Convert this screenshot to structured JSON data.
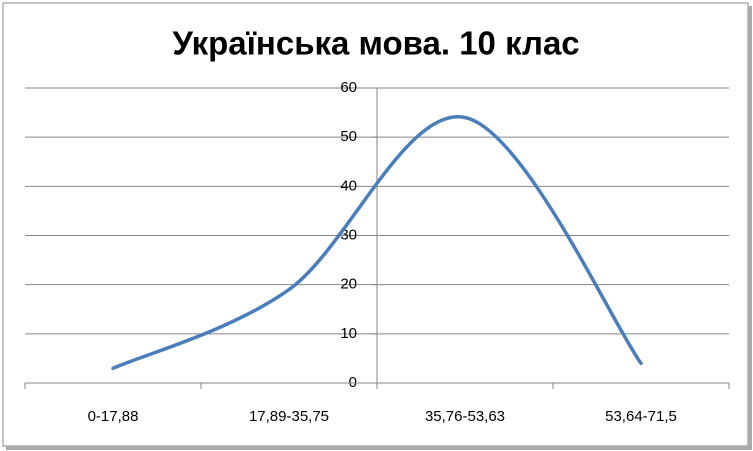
{
  "chart_data": {
    "type": "line",
    "title": "Українська мова. 10 клас",
    "categories": [
      "0-17,88",
      "17,89-35,75",
      "35,76-53,63",
      "53,64-71,5"
    ],
    "series": [
      {
        "color": "#4a7ebb",
        "values": [
          3,
          19,
          54,
          4
        ]
      }
    ],
    "ylim": [
      0,
      60
    ],
    "yticks": [
      0,
      10,
      20,
      30,
      40,
      50,
      60
    ],
    "grid": true,
    "smooth": true
  }
}
